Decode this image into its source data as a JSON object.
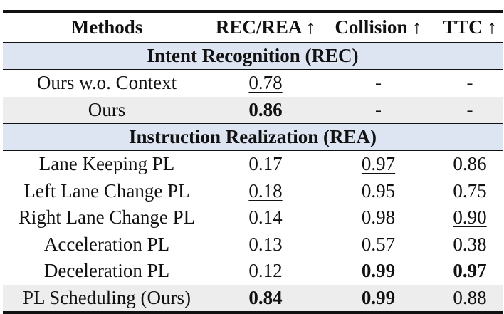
{
  "header": {
    "methods": "Methods",
    "rec_rea": "REC/REA ↑",
    "collision": "Collision ↑",
    "ttc": "TTC ↑"
  },
  "sections": [
    {
      "title": "Intent Recognition (REC)",
      "rows": [
        {
          "method": "Ours w.o. Context",
          "rec": "0.78",
          "collision": "-",
          "ttc": "-",
          "shaded": false
        },
        {
          "method": "Ours",
          "rec": "0.86",
          "collision": "-",
          "ttc": "-",
          "shaded": true
        }
      ]
    },
    {
      "title": "Instruction Realization (REA)",
      "rows": [
        {
          "method": "Lane Keeping PL",
          "rec": "0.17",
          "collision": "0.97",
          "ttc": "0.86",
          "shaded": false
        },
        {
          "method": "Left Lane Change PL",
          "rec": "0.18",
          "collision": "0.95",
          "ttc": "0.75",
          "shaded": false
        },
        {
          "method": "Right Lane Change PL",
          "rec": "0.14",
          "collision": "0.98",
          "ttc": "0.90",
          "shaded": false
        },
        {
          "method": "Acceleration PL",
          "rec": "0.13",
          "collision": "0.57",
          "ttc": "0.38",
          "shaded": false
        },
        {
          "method": "Deceleration PL",
          "rec": "0.12",
          "collision": "0.99",
          "ttc": "0.97",
          "shaded": false
        },
        {
          "method": "PL Scheduling (Ours)",
          "rec": "0.84",
          "collision": "0.99",
          "ttc": "0.88",
          "shaded": true
        }
      ]
    }
  ]
}
